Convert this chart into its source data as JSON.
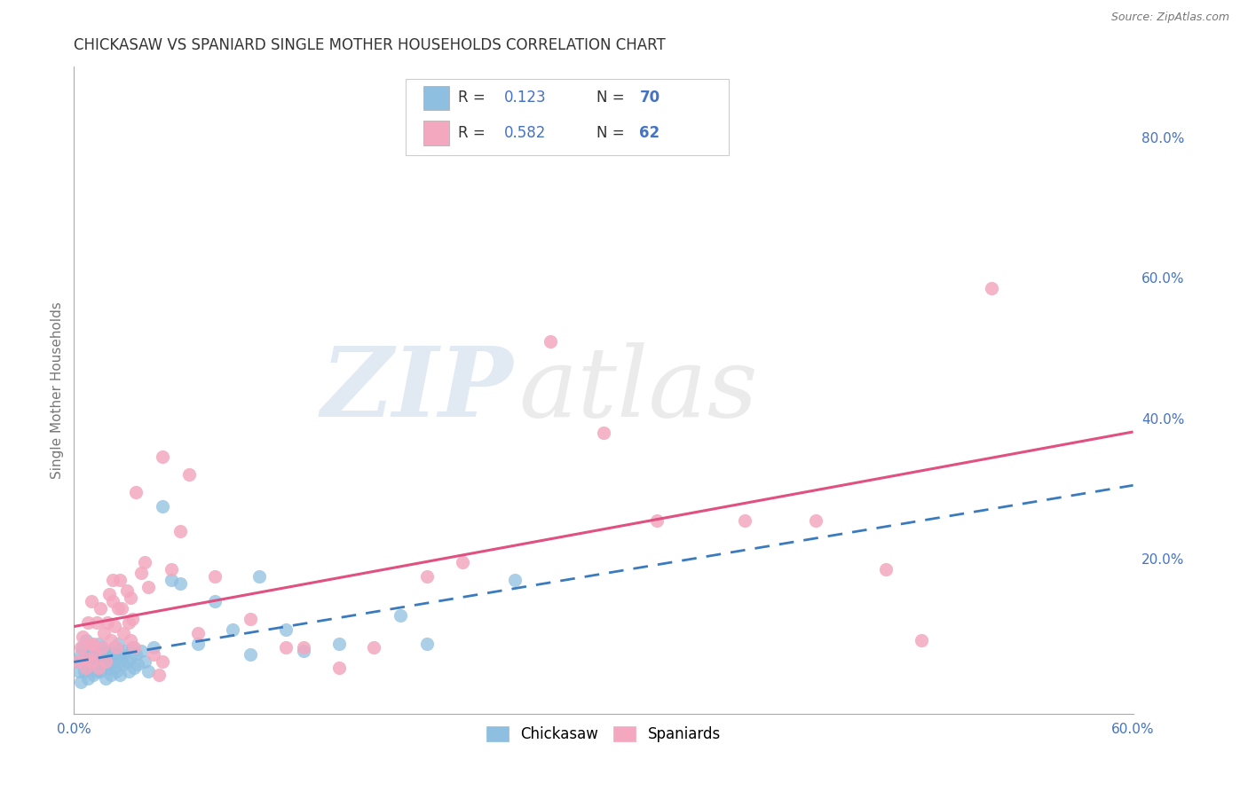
{
  "title": "CHICKASAW VS SPANIARD SINGLE MOTHER HOUSEHOLDS CORRELATION CHART",
  "source": "Source: ZipAtlas.com",
  "ylabel": "Single Mother Households",
  "xlim": [
    0.0,
    0.6
  ],
  "ylim": [
    -0.02,
    0.9
  ],
  "xticks": [
    0.0,
    0.1,
    0.2,
    0.3,
    0.4,
    0.5,
    0.6
  ],
  "xtick_labels": [
    "0.0%",
    "",
    "",
    "",
    "",
    "",
    "60.0%"
  ],
  "yticks_right": [
    0.0,
    0.2,
    0.4,
    0.6,
    0.8
  ],
  "ytick_labels_right": [
    "",
    "20.0%",
    "40.0%",
    "60.0%",
    "80.0%"
  ],
  "chickasaw_color": "#8fbfe0",
  "spaniard_color": "#f4a8c0",
  "chickasaw_R": 0.123,
  "chickasaw_N": 70,
  "spaniard_R": 0.582,
  "spaniard_N": 62,
  "legend_label1": "Chickasaw",
  "legend_label2": "Spaniards",
  "watermark_zip": "ZIP",
  "watermark_atlas": "atlas",
  "chickasaw_trendline_color": "#3a7abf",
  "spaniard_trendline_color": "#e05080",
  "chickasaw_scatter": [
    [
      0.002,
      0.055
    ],
    [
      0.003,
      0.04
    ],
    [
      0.004,
      0.065
    ],
    [
      0.004,
      0.025
    ],
    [
      0.005,
      0.075
    ],
    [
      0.006,
      0.06
    ],
    [
      0.006,
      0.04
    ],
    [
      0.007,
      0.085
    ],
    [
      0.008,
      0.05
    ],
    [
      0.008,
      0.03
    ],
    [
      0.009,
      0.07
    ],
    [
      0.009,
      0.055
    ],
    [
      0.01,
      0.065
    ],
    [
      0.01,
      0.045
    ],
    [
      0.011,
      0.055
    ],
    [
      0.011,
      0.035
    ],
    [
      0.012,
      0.07
    ],
    [
      0.012,
      0.05
    ],
    [
      0.013,
      0.06
    ],
    [
      0.013,
      0.04
    ],
    [
      0.014,
      0.08
    ],
    [
      0.014,
      0.055
    ],
    [
      0.015,
      0.065
    ],
    [
      0.015,
      0.04
    ],
    [
      0.016,
      0.075
    ],
    [
      0.016,
      0.05
    ],
    [
      0.017,
      0.065
    ],
    [
      0.018,
      0.05
    ],
    [
      0.018,
      0.03
    ],
    [
      0.019,
      0.06
    ],
    [
      0.02,
      0.07
    ],
    [
      0.02,
      0.045
    ],
    [
      0.021,
      0.055
    ],
    [
      0.021,
      0.035
    ],
    [
      0.022,
      0.065
    ],
    [
      0.023,
      0.075
    ],
    [
      0.023,
      0.045
    ],
    [
      0.024,
      0.06
    ],
    [
      0.024,
      0.04
    ],
    [
      0.025,
      0.08
    ],
    [
      0.026,
      0.055
    ],
    [
      0.026,
      0.035
    ],
    [
      0.027,
      0.065
    ],
    [
      0.028,
      0.05
    ],
    [
      0.029,
      0.07
    ],
    [
      0.03,
      0.055
    ],
    [
      0.031,
      0.04
    ],
    [
      0.032,
      0.06
    ],
    [
      0.033,
      0.075
    ],
    [
      0.034,
      0.045
    ],
    [
      0.035,
      0.065
    ],
    [
      0.036,
      0.05
    ],
    [
      0.038,
      0.07
    ],
    [
      0.04,
      0.055
    ],
    [
      0.042,
      0.04
    ],
    [
      0.045,
      0.075
    ],
    [
      0.05,
      0.275
    ],
    [
      0.055,
      0.17
    ],
    [
      0.06,
      0.165
    ],
    [
      0.07,
      0.08
    ],
    [
      0.08,
      0.14
    ],
    [
      0.09,
      0.1
    ],
    [
      0.1,
      0.065
    ],
    [
      0.105,
      0.175
    ],
    [
      0.12,
      0.1
    ],
    [
      0.13,
      0.07
    ],
    [
      0.15,
      0.08
    ],
    [
      0.185,
      0.12
    ],
    [
      0.2,
      0.08
    ],
    [
      0.25,
      0.17
    ]
  ],
  "spaniard_scatter": [
    [
      0.002,
      0.055
    ],
    [
      0.004,
      0.075
    ],
    [
      0.005,
      0.09
    ],
    [
      0.006,
      0.06
    ],
    [
      0.007,
      0.045
    ],
    [
      0.008,
      0.11
    ],
    [
      0.009,
      0.08
    ],
    [
      0.01,
      0.055
    ],
    [
      0.01,
      0.14
    ],
    [
      0.011,
      0.08
    ],
    [
      0.012,
      0.065
    ],
    [
      0.013,
      0.11
    ],
    [
      0.014,
      0.045
    ],
    [
      0.015,
      0.13
    ],
    [
      0.016,
      0.075
    ],
    [
      0.017,
      0.095
    ],
    [
      0.018,
      0.055
    ],
    [
      0.019,
      0.11
    ],
    [
      0.02,
      0.15
    ],
    [
      0.021,
      0.085
    ],
    [
      0.022,
      0.17
    ],
    [
      0.022,
      0.14
    ],
    [
      0.023,
      0.105
    ],
    [
      0.024,
      0.075
    ],
    [
      0.025,
      0.13
    ],
    [
      0.026,
      0.17
    ],
    [
      0.027,
      0.13
    ],
    [
      0.028,
      0.095
    ],
    [
      0.03,
      0.155
    ],
    [
      0.031,
      0.11
    ],
    [
      0.032,
      0.085
    ],
    [
      0.032,
      0.145
    ],
    [
      0.033,
      0.115
    ],
    [
      0.034,
      0.075
    ],
    [
      0.035,
      0.295
    ],
    [
      0.038,
      0.18
    ],
    [
      0.04,
      0.195
    ],
    [
      0.042,
      0.16
    ],
    [
      0.045,
      0.065
    ],
    [
      0.048,
      0.035
    ],
    [
      0.05,
      0.055
    ],
    [
      0.05,
      0.345
    ],
    [
      0.055,
      0.185
    ],
    [
      0.06,
      0.24
    ],
    [
      0.065,
      0.32
    ],
    [
      0.07,
      0.095
    ],
    [
      0.08,
      0.175
    ],
    [
      0.1,
      0.115
    ],
    [
      0.12,
      0.075
    ],
    [
      0.13,
      0.075
    ],
    [
      0.15,
      0.045
    ],
    [
      0.17,
      0.075
    ],
    [
      0.2,
      0.175
    ],
    [
      0.22,
      0.195
    ],
    [
      0.27,
      0.51
    ],
    [
      0.3,
      0.38
    ],
    [
      0.33,
      0.255
    ],
    [
      0.38,
      0.255
    ],
    [
      0.42,
      0.255
    ],
    [
      0.46,
      0.185
    ],
    [
      0.48,
      0.085
    ],
    [
      0.52,
      0.585
    ]
  ],
  "background_color": "#ffffff",
  "grid_color": "#cccccc",
  "title_color": "#333333"
}
